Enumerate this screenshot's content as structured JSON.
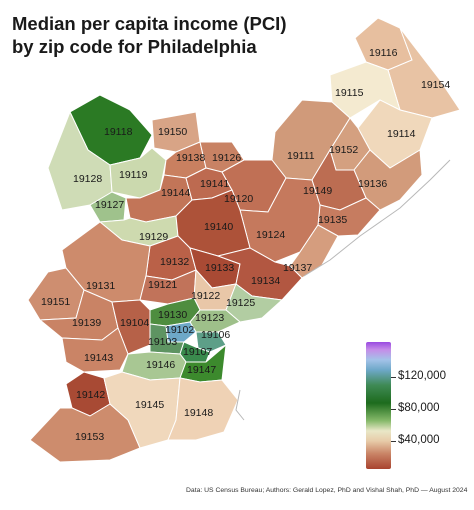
{
  "title_line1": "Median per capita income (PCI)",
  "title_line2": "by zip code for Philadelphia",
  "credit": "Data: US Census Bureau; Authors: Gerald Lopez, PhD and Vishal Shah, PhD — August 2024",
  "legend": {
    "labels": [
      "$120,000",
      "$80,000",
      "$40,000"
    ],
    "colors": [
      "#9a4ae0",
      "#6ea8c8",
      "#1d6b1d",
      "#e9e7c7",
      "#a8432f"
    ]
  },
  "zips": [
    "19116",
    "19154",
    "19115",
    "19114",
    "19118",
    "19150",
    "19138",
    "19126",
    "19111",
    "19152",
    "19128",
    "19119",
    "19141",
    "19120",
    "19149",
    "19136",
    "19144",
    "19127",
    "19135",
    "19129",
    "19140",
    "19124",
    "19132",
    "19133",
    "19137",
    "19131",
    "19121",
    "19134",
    "19122",
    "19151",
    "19125",
    "19130",
    "19123",
    "19139",
    "19104",
    "19102",
    "19106",
    "19103",
    "19143",
    "19107",
    "19146",
    "19147",
    "19142",
    "19145",
    "19148",
    "19153"
  ]
}
